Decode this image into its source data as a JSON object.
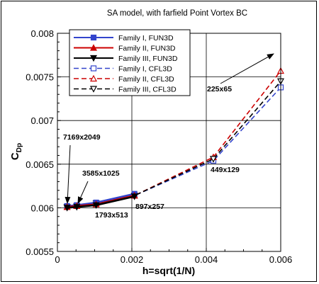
{
  "chart_data": {
    "type": "line",
    "title": "SA model, with farfield Point Vortex BC",
    "xlabel": "h=sqrt(1/N)",
    "ylabel_main": "C",
    "ylabel_sub": "Dp",
    "xlim": [
      0,
      0.006
    ],
    "ylim": [
      0.0055,
      0.008
    ],
    "xticks": [
      "0",
      "0.002",
      "0.004",
      "0.006"
    ],
    "yticks": [
      "0.0055",
      "0.006",
      "0.0065",
      "0.007",
      "0.0075",
      "0.008"
    ],
    "grid": true,
    "legend_position": "top-left",
    "series": [
      {
        "name": "Family I, FUN3D",
        "color": "#3344cc",
        "dash": "solid",
        "marker": "square-filled",
        "points": [
          [
            0.00026,
            0.00602
          ],
          [
            0.00052,
            0.00603
          ],
          [
            0.00104,
            0.00606
          ],
          [
            0.00207,
            0.00616
          ]
        ]
      },
      {
        "name": "Family II, FUN3D",
        "color": "#cc0000",
        "dash": "solid",
        "marker": "triangle-up-filled",
        "points": [
          [
            0.00026,
            0.00601
          ],
          [
            0.00052,
            0.00602
          ],
          [
            0.00104,
            0.00604
          ],
          [
            0.00207,
            0.00614
          ]
        ]
      },
      {
        "name": "Family III, FUN3D",
        "color": "#000000",
        "dash": "solid",
        "marker": "triangle-down-filled",
        "points": [
          [
            0.00026,
            0.006
          ],
          [
            0.00052,
            0.00601
          ],
          [
            0.00104,
            0.00603
          ],
          [
            0.00207,
            0.00613
          ]
        ]
      },
      {
        "name": "Family I, CFL3D",
        "color": "#3344cc",
        "dash": "dashed",
        "marker": "square-open",
        "points": [
          [
            0.00026,
            0.00601
          ],
          [
            0.00052,
            0.00602
          ],
          [
            0.00104,
            0.00605
          ],
          [
            0.00207,
            0.00614
          ],
          [
            0.00419,
            0.00654
          ],
          [
            0.006,
            0.00738
          ]
        ]
      },
      {
        "name": "Family II, CFL3D",
        "color": "#cc0000",
        "dash": "dashed",
        "marker": "triangle-up-open",
        "points": [
          [
            0.00026,
            0.00601
          ],
          [
            0.00052,
            0.00602
          ],
          [
            0.00104,
            0.00605
          ],
          [
            0.00207,
            0.00614
          ],
          [
            0.00419,
            0.00658
          ],
          [
            0.006,
            0.00757
          ]
        ]
      },
      {
        "name": "Family III, CFL3D",
        "color": "#000000",
        "dash": "dashed",
        "marker": "triangle-down-open",
        "points": [
          [
            0.00026,
            0.00601
          ],
          [
            0.00052,
            0.00602
          ],
          [
            0.00104,
            0.00605
          ],
          [
            0.00207,
            0.00614
          ],
          [
            0.00419,
            0.00656
          ],
          [
            0.006,
            0.00745
          ]
        ]
      }
    ],
    "annotations": [
      {
        "text": "7169x2049"
      },
      {
        "text": "3585x1025"
      },
      {
        "text": "1793x513"
      },
      {
        "text": "897x257"
      },
      {
        "text": "449x129"
      },
      {
        "text": "225x65"
      }
    ]
  }
}
